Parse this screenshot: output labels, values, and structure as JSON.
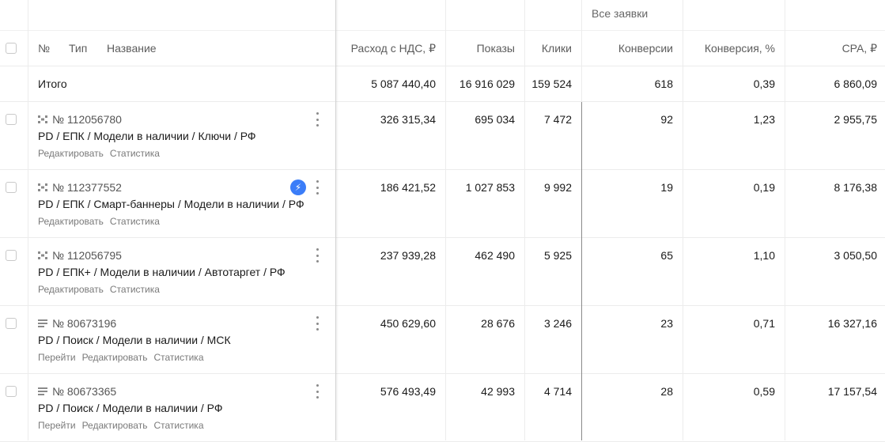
{
  "header": {
    "group_label": "Все заявки",
    "col_num": "№",
    "col_type": "Тип",
    "col_name": "Название",
    "col_spend": "Расход с НДС, ₽",
    "col_impressions": "Показы",
    "col_clicks": "Клики",
    "col_conversions": "Конверсии",
    "col_conv_rate": "Конверсия, %",
    "col_cpa": "CPA, ₽"
  },
  "total": {
    "label": "Итого",
    "spend": "5 087 440,40",
    "impressions": "16 916 029",
    "clicks": "159 524",
    "conversions": "618",
    "conv_rate": "0,39",
    "cpa": "6 860,09"
  },
  "rows": [
    {
      "id": "№ 112056780",
      "icon": "smart-banner-icon",
      "name": "PD / ЕПК / Модели в наличии / Ключи / РФ",
      "links": [
        "Редактировать",
        "Статистика"
      ],
      "spend": "326 315,34",
      "impressions": "695 034",
      "clicks": "7 472",
      "conversions": "92",
      "conv_rate": "1,23",
      "cpa": "2 955,75"
    },
    {
      "id": "№ 112377552",
      "icon": "smart-banner-icon",
      "badge": "⚡",
      "name": "PD / ЕПК / Смарт-баннеры / Модели в наличии / РФ",
      "links": [
        "Редактировать",
        "Статистика"
      ],
      "spend": "186 421,52",
      "impressions": "1 027 853",
      "clicks": "9 992",
      "conversions": "19",
      "conv_rate": "0,19",
      "cpa": "8 176,38"
    },
    {
      "id": "№ 112056795",
      "icon": "smart-banner-icon",
      "name": "PD / ЕПК+ / Модели в наличии / Автотаргет / РФ",
      "links": [
        "Редактировать",
        "Статистика"
      ],
      "spend": "237 939,28",
      "impressions": "462 490",
      "clicks": "5 925",
      "conversions": "65",
      "conv_rate": "1,10",
      "cpa": "3 050,50"
    },
    {
      "id": "№ 80673196",
      "icon": "text-ad-icon",
      "name": "PD / Поиск / Модели в наличии / МСК",
      "links": [
        "Перейти",
        "Редактировать",
        "Статистика"
      ],
      "spend": "450 629,60",
      "impressions": "28 676",
      "clicks": "3 246",
      "conversions": "23",
      "conv_rate": "0,71",
      "cpa": "16 327,16"
    },
    {
      "id": "№ 80673365",
      "icon": "text-ad-icon",
      "name": "PD / Поиск / Модели в наличии / РФ",
      "links": [
        "Перейти",
        "Редактировать",
        "Статистика"
      ],
      "spend": "576 493,49",
      "impressions": "42 993",
      "clicks": "4 714",
      "conversions": "28",
      "conv_rate": "0,59",
      "cpa": "17 157,54"
    }
  ]
}
